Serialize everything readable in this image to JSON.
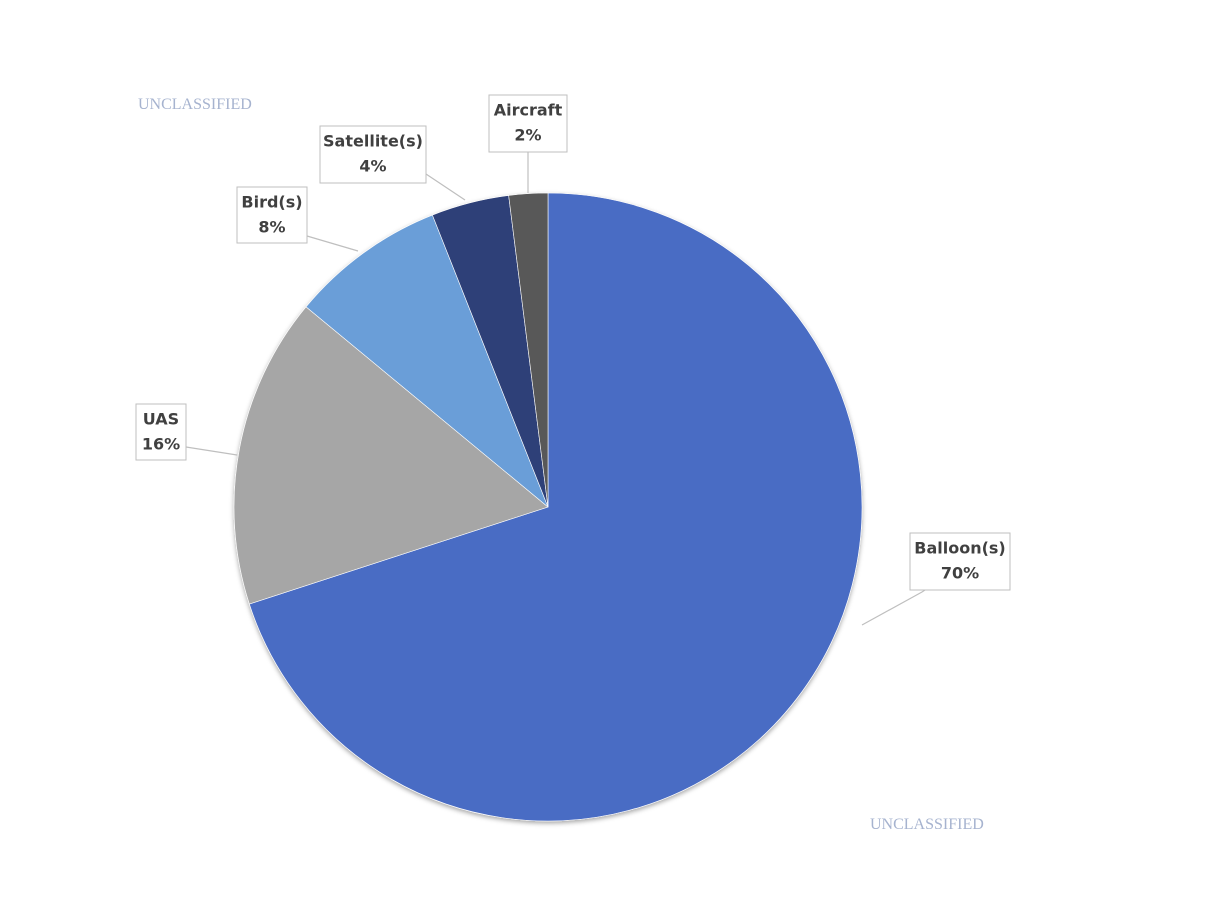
{
  "chart_data": {
    "type": "pie",
    "categories": [
      "Balloon(s)",
      "UAS",
      "Bird(s)",
      "Satellite(s)",
      "Aircraft"
    ],
    "values": [
      70,
      16,
      8,
      4,
      2
    ],
    "value_labels": [
      "70%",
      "16%",
      "8%",
      "4%",
      "2%"
    ],
    "colors": [
      "#4a6cc4",
      "#a6a6a6",
      "#6a9ed8",
      "#2e4078",
      "#595959"
    ],
    "annotations": [
      "UNCLASSIFIED",
      "UNCLASSIFIED"
    ]
  }
}
